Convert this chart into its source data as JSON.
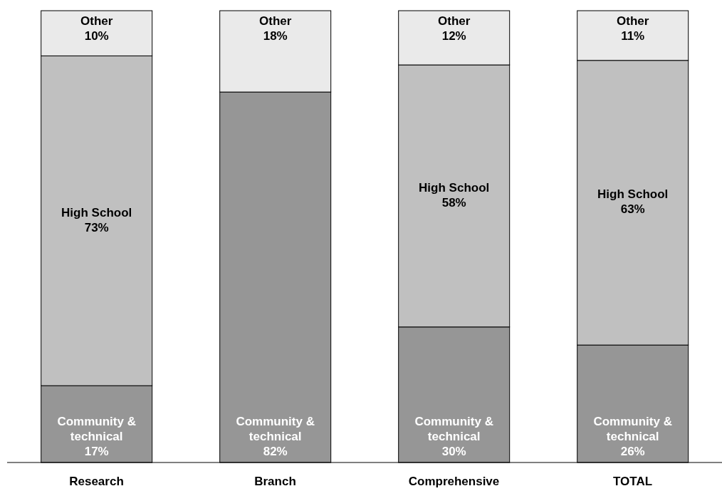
{
  "chart_data": {
    "type": "bar",
    "stacked": true,
    "legend": false,
    "categories": [
      "Research",
      "Branch",
      "Comprehensive",
      "TOTAL"
    ],
    "series": [
      {
        "name": "Community & technical",
        "color": "#969696",
        "values": [
          17,
          82,
          30,
          26
        ],
        "value_labels": [
          "17%",
          "82%",
          "30%",
          "26%"
        ]
      },
      {
        "name": "High School",
        "color": "#c0c0c0",
        "values": [
          73,
          0,
          58,
          63
        ],
        "value_labels": [
          "73%",
          null,
          "58%",
          "63%"
        ]
      },
      {
        "name": "Other",
        "color": "#eaeaea",
        "values": [
          10,
          18,
          12,
          11
        ],
        "value_labels": [
          "10%",
          "18%",
          "12%",
          "11%"
        ]
      }
    ]
  }
}
